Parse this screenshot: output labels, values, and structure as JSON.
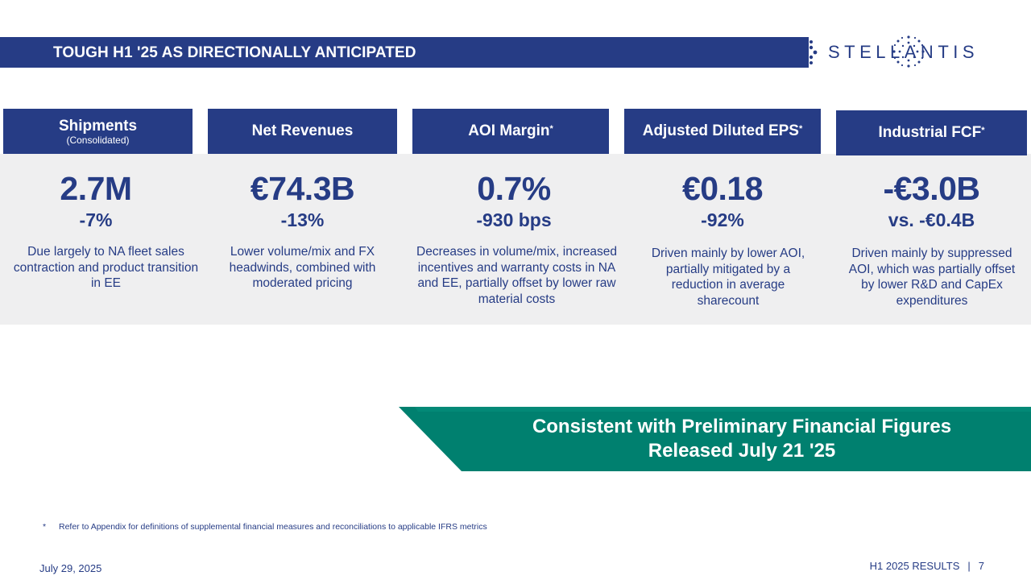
{
  "header": {
    "title": "TOUGH H1 '25 AS DIRECTIONALLY ANTICIPATED"
  },
  "logo": {
    "text": "STELLANTIS"
  },
  "kpis": [
    {
      "title": "Shipments",
      "subtitle": "(Consolidated)",
      "value": "2.7M",
      "change": "-7%",
      "description": "Due largely to NA fleet sales contraction and product transition in EE"
    },
    {
      "title": "Net Revenues",
      "value": "€74.3B",
      "change": "-13%",
      "description": "Lower volume/mix and FX headwinds, combined with moderated pricing"
    },
    {
      "title": "AOI Margin",
      "marker": "*",
      "value": "0.7%",
      "change": "-930 bps",
      "description": "Decreases in volume/mix, increased incentives and warranty costs in NA and EE, partially offset by lower raw material costs"
    },
    {
      "title": "Adjusted Diluted EPS",
      "marker": "*",
      "value": "€0.18",
      "change": "-92%",
      "description": "Driven mainly by lower AOI, partially mitigated by a reduction in average sharecount"
    },
    {
      "title": "Industrial FCF",
      "marker": "*",
      "value": "-€3.0B",
      "change": "vs. -€0.4B",
      "description": "Driven mainly by suppressed AOI, which was partially offset by lower R&D and CapEx expenditures"
    }
  ],
  "banner": {
    "line1": "Consistent with Preliminary Financial Figures",
    "line2": "Released July 21 '25"
  },
  "footnote": {
    "marker": "*",
    "text": "Refer to Appendix for definitions of supplemental financial measures and reconciliations to applicable IFRS metrics"
  },
  "footer": {
    "date": "July 29, 2025",
    "section": "H1 2025 RESULTS",
    "separator": "|",
    "page": "7"
  },
  "colors": {
    "brand_navy": "#263c85",
    "panel_gray": "#efeff0",
    "banner_teal": "#00806f"
  }
}
